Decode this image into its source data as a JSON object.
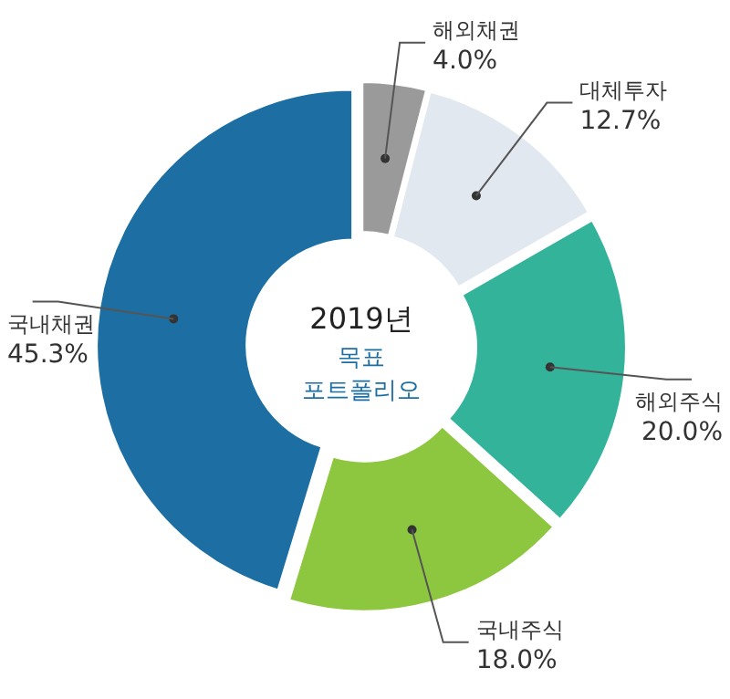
{
  "chart_data": {
    "type": "donut",
    "title": "2019년",
    "subtitle": "목표 포트폴리오",
    "categories": [
      "해외채권",
      "대체투자",
      "해외주식",
      "국내주식",
      "국내채권"
    ],
    "values": [
      4.0,
      12.7,
      20.0,
      18.0,
      45.3
    ],
    "value_labels": [
      "4.0%",
      "12.7%",
      "20.0%",
      "18.0%",
      "45.3%"
    ],
    "colors": [
      "#9a9a9a",
      "#e1e8f0",
      "#33b39a",
      "#8dc63f",
      "#1d6fa3"
    ]
  }
}
